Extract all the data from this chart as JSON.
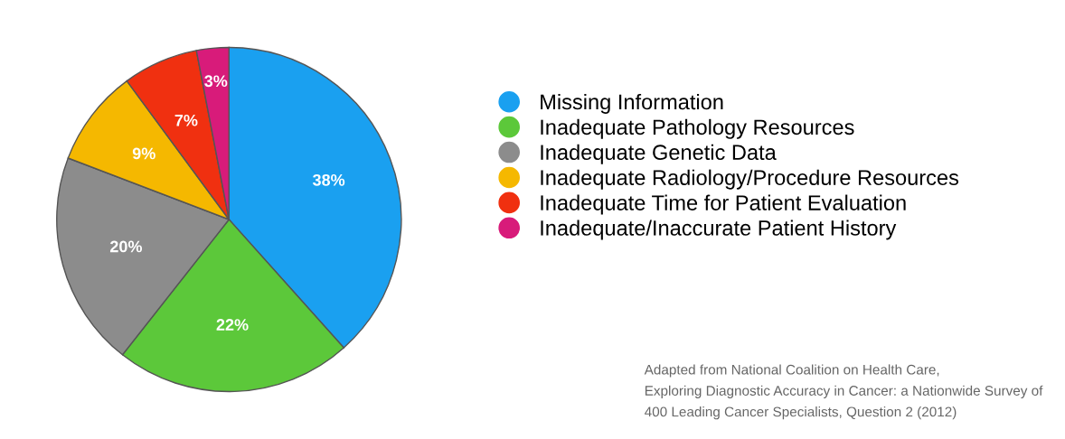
{
  "chart_data": {
    "type": "pie",
    "categories": [
      "Missing Information",
      "Inadequate Pathology Resources",
      "Inadequate Genetic Data",
      "Inadequate Radiology/Procedure Resources",
      "Inadequate Time for Patient Evaluation",
      "Inadequate/Inaccurate Patient History"
    ],
    "values": [
      38,
      22,
      20,
      9,
      7,
      3
    ],
    "colors": [
      "#1aa0f0",
      "#5cc83a",
      "#8c8c8c",
      "#f5b800",
      "#f03010",
      "#d81b7a"
    ],
    "value_labels": [
      "38%",
      "22%",
      "20%",
      "9%",
      "7%",
      "3%"
    ],
    "legend": "right",
    "annotations": [
      "Adapted from National Coalition on Health Care,",
      "Exploring Diagnostic Accuracy in Cancer: a Nationwide Survey of",
      "400 Leading Cancer Specialists, Question 2 (2012)"
    ]
  }
}
